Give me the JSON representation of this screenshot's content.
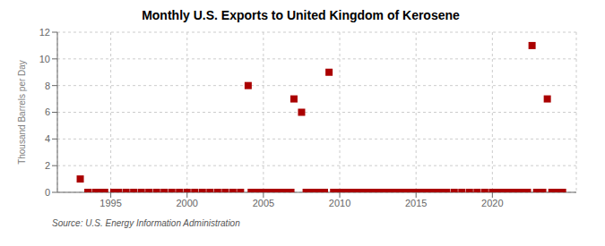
{
  "chart_data": {
    "type": "scatter",
    "title": "Monthly U.S. Exports to United Kingdom of Kerosene",
    "y_label": "Thousand Barrels per Day",
    "source": "Source: U.S. Energy Information Administration",
    "color": "#aa0000",
    "marker": "square",
    "grid": true,
    "xlim": [
      1991.5,
      2025.5
    ],
    "xticks": [
      1995,
      2000,
      2005,
      2010,
      2015,
      2020
    ],
    "ylim": [
      0,
      12
    ],
    "yticks": [
      0,
      2,
      4,
      6,
      8,
      10,
      12
    ],
    "x": [
      1993.0,
      1993.5,
      1994.0,
      1994.3,
      1994.6,
      1995.2,
      1995.5,
      1996.0,
      1996.5,
      1997.0,
      1997.5,
      1998.0,
      1998.5,
      1999.0,
      1999.5,
      2000.0,
      2000.5,
      2001.0,
      2001.5,
      2002.0,
      2002.5,
      2003.0,
      2003.5,
      2004.0,
      2004.2,
      2004.5,
      2004.7,
      2005.0,
      2005.2,
      2005.5,
      2005.8,
      2006.0,
      2006.2,
      2006.5,
      2006.8,
      2007.0,
      2007.5,
      2007.8,
      2008.0,
      2008.2,
      2008.5,
      2008.7,
      2009.0,
      2009.3,
      2009.6,
      2009.9,
      2010.0,
      2010.3,
      2010.6,
      2011.0,
      2011.3,
      2011.6,
      2011.9,
      2012.0,
      2012.3,
      2012.6,
      2012.9,
      2013.0,
      2013.3,
      2013.6,
      2013.9,
      2014.0,
      2014.3,
      2014.6,
      2015.0,
      2015.3,
      2015.6,
      2016.0,
      2016.3,
      2016.6,
      2017.0,
      2017.5,
      2018.0,
      2018.5,
      2019.0,
      2019.5,
      2020.0,
      2020.3,
      2020.6,
      2020.9,
      2021.0,
      2021.2,
      2021.5,
      2021.8,
      2022.0,
      2022.3,
      2022.6,
      2022.9,
      2023.0,
      2023.3,
      2023.6,
      2023.9,
      2024.0,
      2024.3,
      2024.6
    ],
    "values": [
      1.0,
      0.0,
      0.0,
      0.0,
      0.0,
      0.0,
      0.0,
      0.0,
      0.0,
      0.0,
      0.0,
      0.0,
      0.0,
      0.0,
      0.0,
      0.0,
      0.0,
      0.0,
      0.0,
      0.0,
      0.0,
      0.0,
      0.0,
      8.0,
      0.0,
      0.0,
      0.0,
      0.0,
      0.0,
      0.0,
      0.0,
      0.0,
      0.0,
      0.0,
      0.0,
      7.0,
      6.0,
      0.0,
      0.0,
      0.0,
      0.0,
      0.0,
      0.0,
      9.0,
      0.0,
      0.0,
      0.0,
      0.0,
      0.0,
      0.0,
      0.0,
      0.0,
      0.0,
      0.0,
      0.0,
      0.0,
      0.0,
      0.0,
      0.0,
      0.0,
      0.0,
      0.0,
      0.0,
      0.0,
      0.0,
      0.0,
      0.0,
      0.0,
      0.0,
      0.0,
      0.0,
      0.0,
      0.0,
      0.0,
      0.0,
      0.0,
      0.0,
      0.0,
      0.0,
      0.0,
      0.0,
      0.0,
      0.0,
      0.0,
      0.0,
      0.0,
      11.0,
      0.0,
      0.0,
      0.0,
      7.0,
      0.0,
      0.0,
      0.0,
      0.0
    ]
  }
}
